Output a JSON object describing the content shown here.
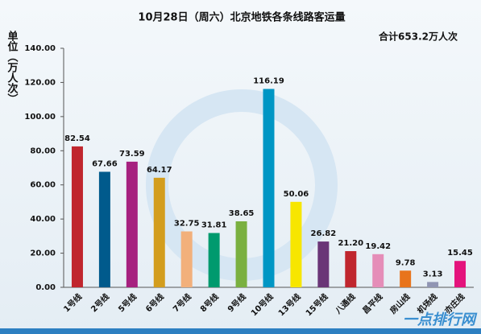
{
  "chart_data": {
    "type": "bar",
    "title": "10月28日（周六）北京地铁各条线路客运量",
    "subtitle": "合计653.2万人次",
    "ylabel": "单位（万人次）",
    "watermark": "一点排行网",
    "categories": [
      "1号线",
      "2号线",
      "5号线",
      "6号线",
      "7号线",
      "8号线",
      "9号线",
      "10号线",
      "13号线",
      "15号线",
      "八通线",
      "昌平线",
      "房山线",
      "机场线",
      "亦庄线"
    ],
    "values": [
      82.54,
      67.66,
      73.59,
      64.17,
      32.75,
      31.81,
      38.65,
      116.19,
      50.06,
      26.82,
      21.2,
      19.42,
      9.78,
      3.13,
      15.45
    ],
    "value_labels": [
      "82.54",
      "67.66",
      "73.59",
      "64.17",
      "32.75",
      "31.81",
      "38.65",
      "116.19",
      "50.06",
      "26.82",
      "21.20",
      "19.42",
      "9.78",
      "3.13",
      "15.45"
    ],
    "colors": [
      "#c0262e",
      "#005a8c",
      "#a6217f",
      "#d39d1d",
      "#f2b07b",
      "#009a6e",
      "#7ab040",
      "#0096c4",
      "#f7e600",
      "#6a3577",
      "#c0262e",
      "#e58db8",
      "#e8741c",
      "#9095b3",
      "#e4137c"
    ],
    "ylim": [
      0,
      140
    ],
    "yticks": [
      {
        "value": 0,
        "label": "0.00"
      },
      {
        "value": 20,
        "label": "20.00"
      },
      {
        "value": 40,
        "label": "40.00"
      },
      {
        "value": 60,
        "label": "60.00"
      },
      {
        "value": 80,
        "label": "80.00"
      },
      {
        "value": 100,
        "label": "100.00"
      },
      {
        "value": 120,
        "label": "120.00"
      },
      {
        "value": 140,
        "label": "140.00"
      }
    ],
    "grid": false
  }
}
